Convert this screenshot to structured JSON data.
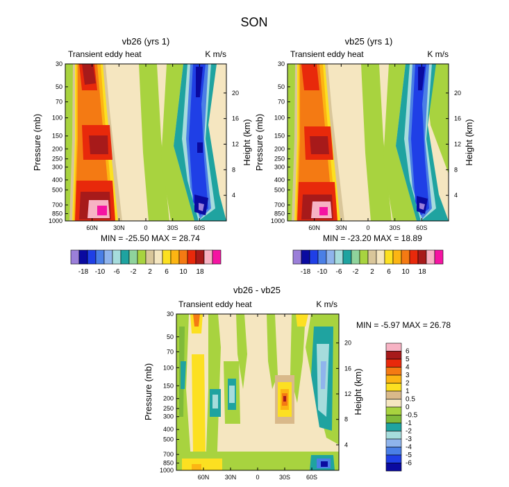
{
  "page_title": "SON",
  "palette_top": [
    "#9b7fd9",
    "#0a0aa0",
    "#1f3fe6",
    "#4a7fe6",
    "#8fb4ec",
    "#a6dcdc",
    "#1fa3a0",
    "#8fd39c",
    "#a8d33f",
    "#d9c69a",
    "#f5e6c0",
    "#fce021",
    "#fcb513",
    "#f47a13",
    "#e8290b",
    "#a71a1a",
    "#f7b3c4",
    "#f514a2"
  ],
  "palette_diff": [
    "#9b7fd9",
    "#0a0aa0",
    "#1f3fe6",
    "#4a7fe6",
    "#8fb4ec",
    "#a6dcdc",
    "#1fa3a0",
    "#7fba3a",
    "#a8d33f",
    "#f5e6c0",
    "#d9b98a",
    "#fce021",
    "#fcb513",
    "#f47a13",
    "#e8290b",
    "#a71a1a",
    "#f7b3c4",
    "#f514a2"
  ],
  "chart_data": [
    {
      "type": "heatmap",
      "title": "vb26 (yrs 1)",
      "left_label": "Transient eddy heat",
      "right_label": "K m/s",
      "ylabel": "Pressure (mb)",
      "ylabel_right": "Height (km)",
      "x_ticks": [
        "60N",
        "30N",
        "0",
        "30S",
        "60S"
      ],
      "y_ticks": [
        "30",
        "50",
        "70",
        "100",
        "150",
        "200",
        "250",
        "300",
        "400",
        "500",
        "700",
        "850",
        "1000"
      ],
      "y_right_ticks": [
        "4",
        "8",
        "12",
        "16",
        "20"
      ],
      "min_max": "MIN = -25.50  MAX =  28.74",
      "colorbar_labels": [
        "-18",
        "-10",
        "-6",
        "-2",
        "2",
        "6",
        "10",
        "18"
      ]
    },
    {
      "type": "heatmap",
      "title": "vb25 (yrs 1)",
      "left_label": "Transient eddy heat",
      "right_label": "K m/s",
      "ylabel": "Pressure (mb)",
      "ylabel_right": "Height (km)",
      "x_ticks": [
        "60N",
        "30N",
        "0",
        "30S",
        "60S"
      ],
      "y_ticks": [
        "30",
        "50",
        "70",
        "100",
        "150",
        "200",
        "250",
        "300",
        "400",
        "500",
        "700",
        "850",
        "1000"
      ],
      "y_right_ticks": [
        "4",
        "8",
        "12",
        "16",
        "20"
      ],
      "min_max": "MIN = -23.20  MAX =  18.89",
      "colorbar_labels": [
        "-18",
        "-10",
        "-6",
        "-2",
        "2",
        "6",
        "10",
        "18"
      ]
    },
    {
      "type": "heatmap",
      "title": "vb26 - vb25",
      "left_label": "Transient eddy heat",
      "right_label": "K m/s",
      "ylabel": "Pressure (mb)",
      "ylabel_right": "Height (km)",
      "x_ticks": [
        "60N",
        "30N",
        "0",
        "30S",
        "60S"
      ],
      "y_ticks": [
        "30",
        "50",
        "70",
        "100",
        "150",
        "200",
        "250",
        "300",
        "400",
        "500",
        "700",
        "850",
        "1000"
      ],
      "y_right_ticks": [
        "4",
        "8",
        "12",
        "16",
        "20"
      ],
      "min_max": "MIN =  -5.97  MAX =  26.78",
      "colorbar_labels": [
        "6",
        "5",
        "4",
        "3",
        "2",
        "1",
        "0.5",
        "0",
        "-0.5",
        "-1",
        "-2",
        "-3",
        "-4",
        "-5",
        "-6"
      ]
    }
  ]
}
